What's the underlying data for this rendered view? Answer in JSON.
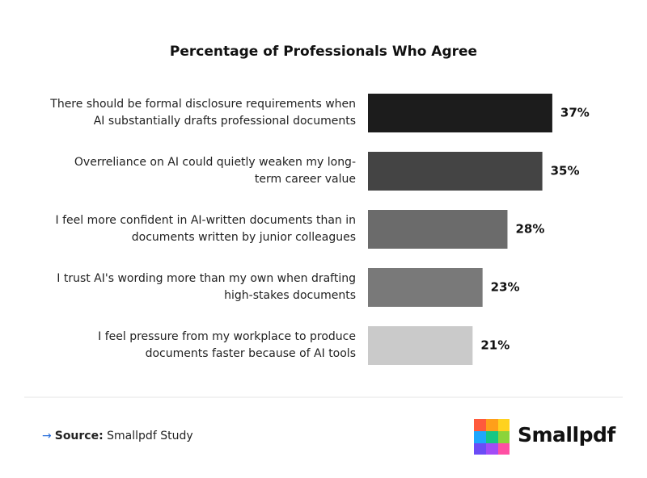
{
  "chart_data": {
    "type": "hbar",
    "title": "Percentage of Professionals Who Agree",
    "categories": [
      "There should be formal disclosure requirements when AI substantially drafts professional documents",
      "Overreliance on AI could quietly weaken my long-term career value",
      "I feel more confident in AI-written documents than in documents written by junior colleagues",
      "I trust AI's wording more than my own when drafting high-stakes documents",
      "I feel pressure from my workplace to produce documents faster because of AI tools"
    ],
    "values": [
      37,
      35,
      28,
      23,
      21
    ],
    "value_labels": [
      "37%",
      "35%",
      "28%",
      "23%",
      "21%"
    ],
    "colors": [
      "#1c1c1c",
      "#444444",
      "#6b6b6b",
      "#797979",
      "#cacaca"
    ]
  },
  "footer": {
    "source_label": "Source:",
    "source": "Smallpdf Study",
    "brand": "Smallpdf"
  }
}
